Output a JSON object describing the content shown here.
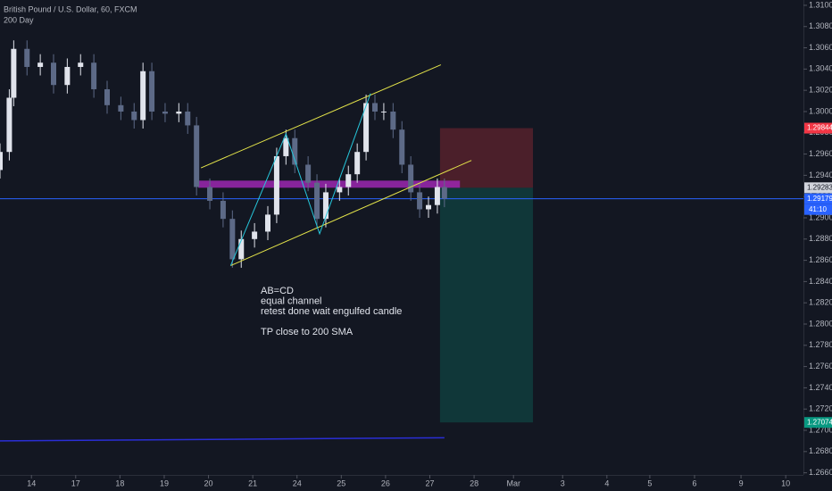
{
  "chart_data": {
    "type": "candlestick",
    "title": "British Pound / U.S. Dollar, 60, FXCM",
    "indicator_label": "200 Day",
    "annotations": [
      "AB=CD",
      "equal channel",
      "retest done wait engulfed candle",
      "TP close to 200 SMA"
    ],
    "x": [
      -0.71,
      -0.5,
      -0.4,
      -0.1,
      0.2,
      0.5,
      0.81,
      1.11,
      1.41,
      1.71,
      2.02,
      2.32,
      2.52,
      2.72,
      3.02,
      3.33,
      3.53,
      3.73,
      4.03,
      4.33,
      4.54,
      4.74,
      5.04,
      5.34,
      5.54,
      5.75,
      5.95,
      6.25,
      6.45,
      6.65,
      6.96,
      7.16,
      7.36,
      7.56,
      7.76,
      7.96,
      8.17,
      8.37,
      8.57,
      8.77,
      8.97,
      9.17,
      9.33
    ],
    "open": [
      1.2945,
      1.2962,
      1.3013,
      1.3059,
      1.3042,
      1.3046,
      1.3025,
      1.3042,
      1.3046,
      1.3021,
      1.3006,
      1.3,
      1.2992,
      1.3038,
      1.3,
      1.2998,
      1.3,
      1.2987,
      1.2929,
      1.2916,
      1.2899,
      1.2861,
      1.288,
      1.2887,
      1.2903,
      1.2958,
      1.2975,
      1.295,
      1.2933,
      1.2899,
      1.2924,
      1.2929,
      1.2941,
      1.2962,
      1.3008,
      1.3,
      1.3,
      1.2983,
      1.295,
      1.2924,
      1.2908,
      1.2912,
      1.2929
    ],
    "high": [
      1.297,
      1.3021,
      1.3067,
      1.3067,
      1.3054,
      1.3054,
      1.305,
      1.3054,
      1.3054,
      1.3029,
      1.3014,
      1.3008,
      1.3046,
      1.3046,
      1.3008,
      1.3008,
      1.3008,
      1.2995,
      1.2937,
      1.2924,
      1.2907,
      1.2888,
      1.2895,
      1.2911,
      1.2966,
      1.2983,
      1.2983,
      1.2958,
      1.2941,
      1.2932,
      1.2937,
      1.2949,
      1.297,
      1.3016,
      1.3016,
      1.3008,
      1.3008,
      1.2991,
      1.2958,
      1.2932,
      1.292,
      1.2937,
      1.2937
    ],
    "low": [
      1.2937,
      1.2954,
      1.3005,
      1.3034,
      1.3034,
      1.3017,
      1.3017,
      1.3034,
      1.3013,
      1.2998,
      1.2992,
      1.2984,
      1.2984,
      1.2992,
      1.299,
      1.299,
      1.2979,
      1.2921,
      1.2908,
      1.2891,
      1.2853,
      1.2853,
      1.2872,
      1.2879,
      1.2895,
      1.295,
      1.2942,
      1.2925,
      1.2891,
      1.2891,
      1.2916,
      1.2921,
      1.2933,
      1.2954,
      1.2992,
      1.2992,
      1.2975,
      1.2942,
      1.2916,
      1.29,
      1.29,
      1.2904,
      1.291
    ],
    "close": [
      1.2962,
      1.3013,
      1.3059,
      1.3042,
      1.3046,
      1.3025,
      1.3042,
      1.3046,
      1.3021,
      1.3006,
      1.3,
      1.2992,
      1.3038,
      1.3,
      1.2998,
      1.3,
      1.2987,
      1.2929,
      1.2916,
      1.2899,
      1.2861,
      1.288,
      1.2887,
      1.2903,
      1.2958,
      1.2975,
      1.295,
      1.2933,
      1.2899,
      1.2924,
      1.2929,
      1.2941,
      1.2962,
      1.3008,
      1.3,
      1.3,
      1.2983,
      1.295,
      1.2924,
      1.2908,
      1.2912,
      1.2929,
      1.2918
    ],
    "up_color": "#e0e3eb",
    "down_color": "#5d6a87",
    "xlim": [
      -0.71,
      17.44
    ],
    "ylim": [
      1.2658,
      1.3105
    ],
    "xticks": [
      {
        "value": 0,
        "label": "14"
      },
      {
        "value": 1,
        "label": "17"
      },
      {
        "value": 2,
        "label": "18"
      },
      {
        "value": 3,
        "label": "19"
      },
      {
        "value": 4,
        "label": "20"
      },
      {
        "value": 5,
        "label": "21"
      },
      {
        "value": 6,
        "label": "24"
      },
      {
        "value": 7,
        "label": "25"
      },
      {
        "value": 8,
        "label": "26"
      },
      {
        "value": 9,
        "label": "27"
      },
      {
        "value": 10,
        "label": "28"
      },
      {
        "value": 10.89,
        "label": "Mar"
      },
      {
        "value": 12,
        "label": "3"
      },
      {
        "value": 13,
        "label": "4"
      },
      {
        "value": 13.97,
        "label": "5"
      },
      {
        "value": 14.98,
        "label": "6"
      },
      {
        "value": 16.03,
        "label": "9"
      },
      {
        "value": 17.04,
        "label": "10"
      }
    ],
    "yticks": [
      {
        "value": 1.266,
        "label": "1.26600"
      },
      {
        "value": 1.268,
        "label": "1.26800"
      },
      {
        "value": 1.27,
        "label": "1.27000"
      },
      {
        "value": 1.272,
        "label": "1.27200"
      },
      {
        "value": 1.274,
        "label": "1.27400"
      },
      {
        "value": 1.276,
        "label": "1.27600"
      },
      {
        "value": 1.278,
        "label": "1.27800"
      },
      {
        "value": 1.28,
        "label": "1.28000"
      },
      {
        "value": 1.282,
        "label": "1.28200"
      },
      {
        "value": 1.284,
        "label": "1.28400"
      },
      {
        "value": 1.286,
        "label": "1.28600"
      },
      {
        "value": 1.288,
        "label": "1.28800"
      },
      {
        "value": 1.29,
        "label": "1.29000"
      },
      {
        "value": 1.292,
        "label": "1.29200"
      },
      {
        "value": 1.294,
        "label": "1.29400"
      },
      {
        "value": 1.296,
        "label": "1.29600"
      },
      {
        "value": 1.298,
        "label": "1.29800"
      },
      {
        "value": 1.3,
        "label": "1.30000"
      },
      {
        "value": 1.302,
        "label": "1.30200"
      },
      {
        "value": 1.304,
        "label": "1.30400"
      },
      {
        "value": 1.306,
        "label": "1.30600"
      },
      {
        "value": 1.308,
        "label": "1.30800"
      },
      {
        "value": 1.31,
        "label": "1.31000"
      }
    ],
    "current_price": {
      "value": 1.29179,
      "color": "#2962ff"
    },
    "countdown": "41:10",
    "position": {
      "x": [
        9.23,
        11.33
      ],
      "stop": 1.29844,
      "entry": 1.29283,
      "target": 1.27074,
      "stop_color": "#f23645",
      "entry_color": "#d1d4dc",
      "target_color": "#089981"
    },
    "zone": {
      "color": "#9c27b0",
      "x": [
        3.77,
        9.68
      ],
      "y": [
        1.2935,
        1.29283
      ]
    },
    "channel": {
      "color": "#e5e54a",
      "upper": {
        "x": [
          3.83,
          9.25
        ],
        "y": [
          1.2947,
          1.3044
        ]
      },
      "lower": {
        "x": [
          4.5,
          9.94
        ],
        "y": [
          1.2855,
          1.2954
        ]
      }
    },
    "abcd": {
      "color": "#26c6da",
      "x": [
        4.5,
        5.75,
        6.51,
        7.66
      ],
      "y": [
        1.2855,
        1.2979,
        1.2885,
        1.3017
      ]
    },
    "sma": {
      "color": "#2a2ed6",
      "x": [
        -0.71,
        9.33
      ],
      "y": [
        1.269,
        1.2693
      ]
    }
  }
}
